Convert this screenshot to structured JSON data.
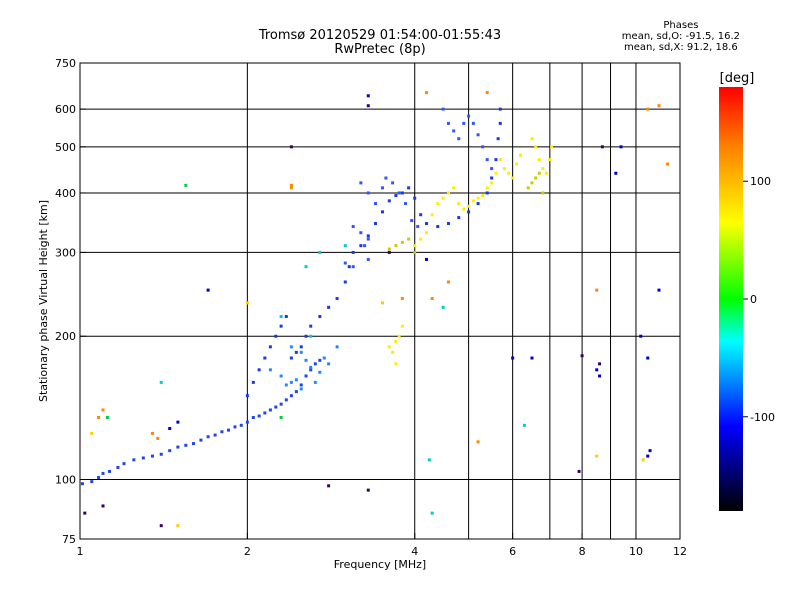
{
  "header": {
    "title_line1": "Tromsø 20120529 01:54:00-01:55:43",
    "title_line2": "RwPretec (8p)"
  },
  "phases": {
    "heading": "Phases",
    "line1": "mean, sd,O: -91.5, 16.2",
    "line2": "mean, sd,X:  91.2, 18.6"
  },
  "chart_data": {
    "type": "scatter",
    "title": "Tromsø 20120529 01:54:00-01:55:43",
    "subtitle": "RwPretec (8p)",
    "xlabel": "Frequency [MHz]",
    "ylabel": "Stationary phase Virtual Height [km]",
    "xscale": "log",
    "yscale": "log",
    "xlim": [
      1,
      12
    ],
    "ylim": [
      75,
      750
    ],
    "x_ticks": [
      1,
      2,
      4,
      6,
      8,
      10,
      12
    ],
    "x_grid": [
      2,
      4,
      5,
      6,
      7,
      8,
      9,
      10
    ],
    "y_ticks": [
      75,
      100,
      200,
      300,
      400,
      500,
      600,
      750
    ],
    "y_grid": [
      100,
      200,
      300,
      400,
      500,
      600
    ],
    "grid": true,
    "colorbar": {
      "label": "[deg]",
      "range": [
        -180,
        180
      ],
      "ticks": [
        100,
        0,
        -100
      ],
      "colors": [
        "#ff0000",
        "#ff8000",
        "#ffff00",
        "#00ff00",
        "#00ffff",
        "#0000ff",
        "#000000"
      ]
    },
    "series": [
      {
        "color": "#2244ee",
        "points": [
          [
            1.01,
            98
          ],
          [
            1.05,
            99
          ],
          [
            1.08,
            101
          ],
          [
            1.1,
            103
          ],
          [
            1.13,
            104
          ],
          [
            1.17,
            106
          ],
          [
            1.2,
            108
          ],
          [
            1.25,
            110
          ],
          [
            1.3,
            111
          ],
          [
            1.35,
            112
          ],
          [
            1.4,
            113
          ],
          [
            1.45,
            115
          ],
          [
            1.5,
            117
          ],
          [
            1.55,
            118
          ],
          [
            1.6,
            119
          ],
          [
            1.65,
            121
          ],
          [
            1.7,
            123
          ],
          [
            1.75,
            124
          ],
          [
            1.8,
            126
          ],
          [
            1.85,
            127
          ],
          [
            1.9,
            129
          ],
          [
            1.95,
            130
          ],
          [
            2.0,
            132
          ],
          [
            2.05,
            135
          ],
          [
            2.1,
            136
          ],
          [
            2.15,
            138
          ],
          [
            2.2,
            140
          ],
          [
            2.25,
            142
          ],
          [
            2.3,
            144
          ],
          [
            2.35,
            147
          ],
          [
            2.4,
            150
          ],
          [
            2.45,
            153
          ],
          [
            2.5,
            158
          ],
          [
            2.55,
            165
          ],
          [
            2.6,
            170
          ],
          [
            2.65,
            175
          ],
          [
            2.7,
            178
          ]
        ]
      },
      {
        "color": "#1a3adf",
        "points": [
          [
            2.0,
            150
          ],
          [
            2.05,
            160
          ],
          [
            2.1,
            170
          ],
          [
            2.15,
            180
          ],
          [
            2.2,
            190
          ],
          [
            2.25,
            200
          ],
          [
            2.3,
            210
          ],
          [
            2.35,
            220
          ],
          [
            2.4,
            180
          ],
          [
            2.45,
            185
          ],
          [
            2.5,
            190
          ],
          [
            2.55,
            200
          ],
          [
            2.6,
            210
          ],
          [
            2.7,
            220
          ],
          [
            2.8,
            230
          ],
          [
            2.9,
            240
          ],
          [
            3.0,
            260
          ],
          [
            3.05,
            280
          ],
          [
            3.1,
            300
          ],
          [
            3.2,
            310
          ],
          [
            3.3,
            325
          ],
          [
            3.4,
            345
          ],
          [
            3.5,
            365
          ],
          [
            3.6,
            385
          ],
          [
            3.7,
            395
          ],
          [
            3.8,
            400
          ],
          [
            3.9,
            410
          ],
          [
            4.0,
            390
          ],
          [
            4.1,
            360
          ],
          [
            4.2,
            345
          ],
          [
            4.4,
            340
          ],
          [
            4.6,
            345
          ],
          [
            4.8,
            355
          ],
          [
            5.0,
            365
          ],
          [
            5.2,
            380
          ],
          [
            5.4,
            400
          ],
          [
            5.5,
            430
          ],
          [
            5.6,
            470
          ],
          [
            5.65,
            520
          ],
          [
            5.7,
            560
          ],
          [
            5.7,
            600
          ]
        ]
      },
      {
        "color": "#3355ff",
        "points": [
          [
            3.2,
            420
          ],
          [
            3.3,
            400
          ],
          [
            3.4,
            380
          ],
          [
            3.5,
            410
          ],
          [
            3.55,
            430
          ],
          [
            3.65,
            420
          ],
          [
            3.75,
            400
          ],
          [
            3.85,
            380
          ],
          [
            3.95,
            350
          ],
          [
            4.05,
            340
          ],
          [
            4.5,
            600
          ],
          [
            4.6,
            560
          ],
          [
            4.7,
            540
          ],
          [
            4.8,
            520
          ],
          [
            4.9,
            560
          ],
          [
            5.0,
            580
          ],
          [
            5.1,
            560
          ],
          [
            5.2,
            530
          ],
          [
            5.3,
            500
          ],
          [
            5.4,
            470
          ],
          [
            5.5,
            450
          ],
          [
            3.1,
            340
          ],
          [
            3.2,
            330
          ],
          [
            3.3,
            320
          ],
          [
            3.25,
            310
          ],
          [
            3.3,
            290
          ],
          [
            3.1,
            280
          ],
          [
            3.0,
            285
          ]
        ]
      },
      {
        "color": "#2288ff",
        "points": [
          [
            2.4,
            190
          ],
          [
            2.5,
            185
          ],
          [
            2.55,
            178
          ],
          [
            2.6,
            172
          ],
          [
            2.7,
            168
          ],
          [
            2.8,
            175
          ],
          [
            2.9,
            190
          ],
          [
            2.75,
            180
          ],
          [
            2.65,
            160
          ],
          [
            2.5,
            155
          ],
          [
            2.4,
            160
          ],
          [
            2.3,
            165
          ],
          [
            2.2,
            170
          ],
          [
            2.35,
            158
          ],
          [
            2.45,
            162
          ]
        ]
      },
      {
        "color": "#ffee00",
        "points": [
          [
            4.0,
            310
          ],
          [
            4.1,
            320
          ],
          [
            4.2,
            330
          ],
          [
            4.3,
            360
          ],
          [
            4.4,
            380
          ],
          [
            4.5,
            390
          ],
          [
            4.6,
            400
          ],
          [
            4.7,
            410
          ],
          [
            4.8,
            380
          ],
          [
            4.9,
            370
          ],
          [
            5.0,
            375
          ],
          [
            5.1,
            385
          ],
          [
            5.2,
            390
          ],
          [
            5.3,
            395
          ],
          [
            5.4,
            410
          ],
          [
            5.5,
            420
          ],
          [
            5.6,
            440
          ],
          [
            5.7,
            470
          ],
          [
            5.8,
            450
          ],
          [
            5.9,
            440
          ],
          [
            6.0,
            430
          ],
          [
            6.1,
            460
          ],
          [
            6.2,
            480
          ],
          [
            6.5,
            520
          ],
          [
            6.6,
            500
          ],
          [
            6.7,
            470
          ],
          [
            6.8,
            450
          ],
          [
            6.9,
            440
          ],
          [
            7.0,
            470
          ],
          [
            7.05,
            500
          ],
          [
            3.6,
            190
          ],
          [
            3.7,
            195
          ],
          [
            3.75,
            200
          ],
          [
            3.8,
            210
          ],
          [
            3.65,
            185
          ],
          [
            3.7,
            175
          ]
        ]
      },
      {
        "color": "#cccc00",
        "points": [
          [
            3.6,
            305
          ],
          [
            3.7,
            310
          ],
          [
            3.8,
            315
          ],
          [
            3.9,
            320
          ],
          [
            4.0,
            300
          ],
          [
            6.4,
            410
          ],
          [
            6.5,
            420
          ],
          [
            6.6,
            430
          ],
          [
            6.7,
            440
          ],
          [
            6.8,
            400
          ]
        ]
      },
      {
        "color": "#00cccc",
        "points": [
          [
            1.4,
            160
          ],
          [
            2.3,
            220
          ],
          [
            2.6,
            200
          ],
          [
            2.55,
            280
          ],
          [
            2.7,
            300
          ],
          [
            3.0,
            310
          ],
          [
            4.3,
            85
          ],
          [
            4.25,
            110
          ],
          [
            4.5,
            230
          ],
          [
            6.3,
            130
          ]
        ]
      },
      {
        "color": "#0000cc",
        "points": [
          [
            1.45,
            128
          ],
          [
            1.5,
            132
          ],
          [
            1.7,
            250
          ],
          [
            3.3,
            640
          ],
          [
            4.2,
            290
          ],
          [
            6.0,
            180
          ],
          [
            6.5,
            180
          ],
          [
            8.5,
            170
          ],
          [
            8.6,
            165
          ],
          [
            9.4,
            500
          ],
          [
            10.5,
            180
          ],
          [
            10.2,
            200
          ],
          [
            11.0,
            250
          ],
          [
            10.6,
            115
          ],
          [
            10.5,
            112
          ],
          [
            9.2,
            440
          ]
        ]
      },
      {
        "color": "#ff8800",
        "points": [
          [
            1.08,
            135
          ],
          [
            1.1,
            140
          ],
          [
            1.35,
            125
          ],
          [
            1.38,
            122
          ],
          [
            2.4,
            415
          ],
          [
            2.4,
            410
          ],
          [
            4.3,
            240
          ],
          [
            4.6,
            260
          ],
          [
            3.8,
            240
          ],
          [
            4.2,
            650
          ],
          [
            8.5,
            250
          ],
          [
            11.0,
            610
          ],
          [
            11.4,
            460
          ],
          [
            10.5,
            600
          ],
          [
            5.4,
            650
          ],
          [
            5.2,
            120
          ]
        ]
      },
      {
        "color": "#ffcc00",
        "points": [
          [
            1.05,
            125
          ],
          [
            1.5,
            80
          ],
          [
            2.0,
            235
          ],
          [
            8.5,
            112
          ],
          [
            10.3,
            110
          ],
          [
            3.5,
            235
          ]
        ]
      },
      {
        "color": "#330066",
        "points": [
          [
            1.02,
            85
          ],
          [
            2.4,
            500
          ],
          [
            2.8,
            97
          ],
          [
            3.3,
            95
          ],
          [
            3.6,
            300
          ],
          [
            7.9,
            104
          ],
          [
            8.7,
            500
          ],
          [
            8.6,
            175
          ],
          [
            8.0,
            182
          ],
          [
            1.4,
            80
          ],
          [
            1.1,
            88
          ],
          [
            3.3,
            610
          ]
        ]
      },
      {
        "color": "#00cc44",
        "points": [
          [
            1.55,
            415
          ],
          [
            2.3,
            135
          ],
          [
            1.12,
            135
          ]
        ]
      }
    ]
  }
}
